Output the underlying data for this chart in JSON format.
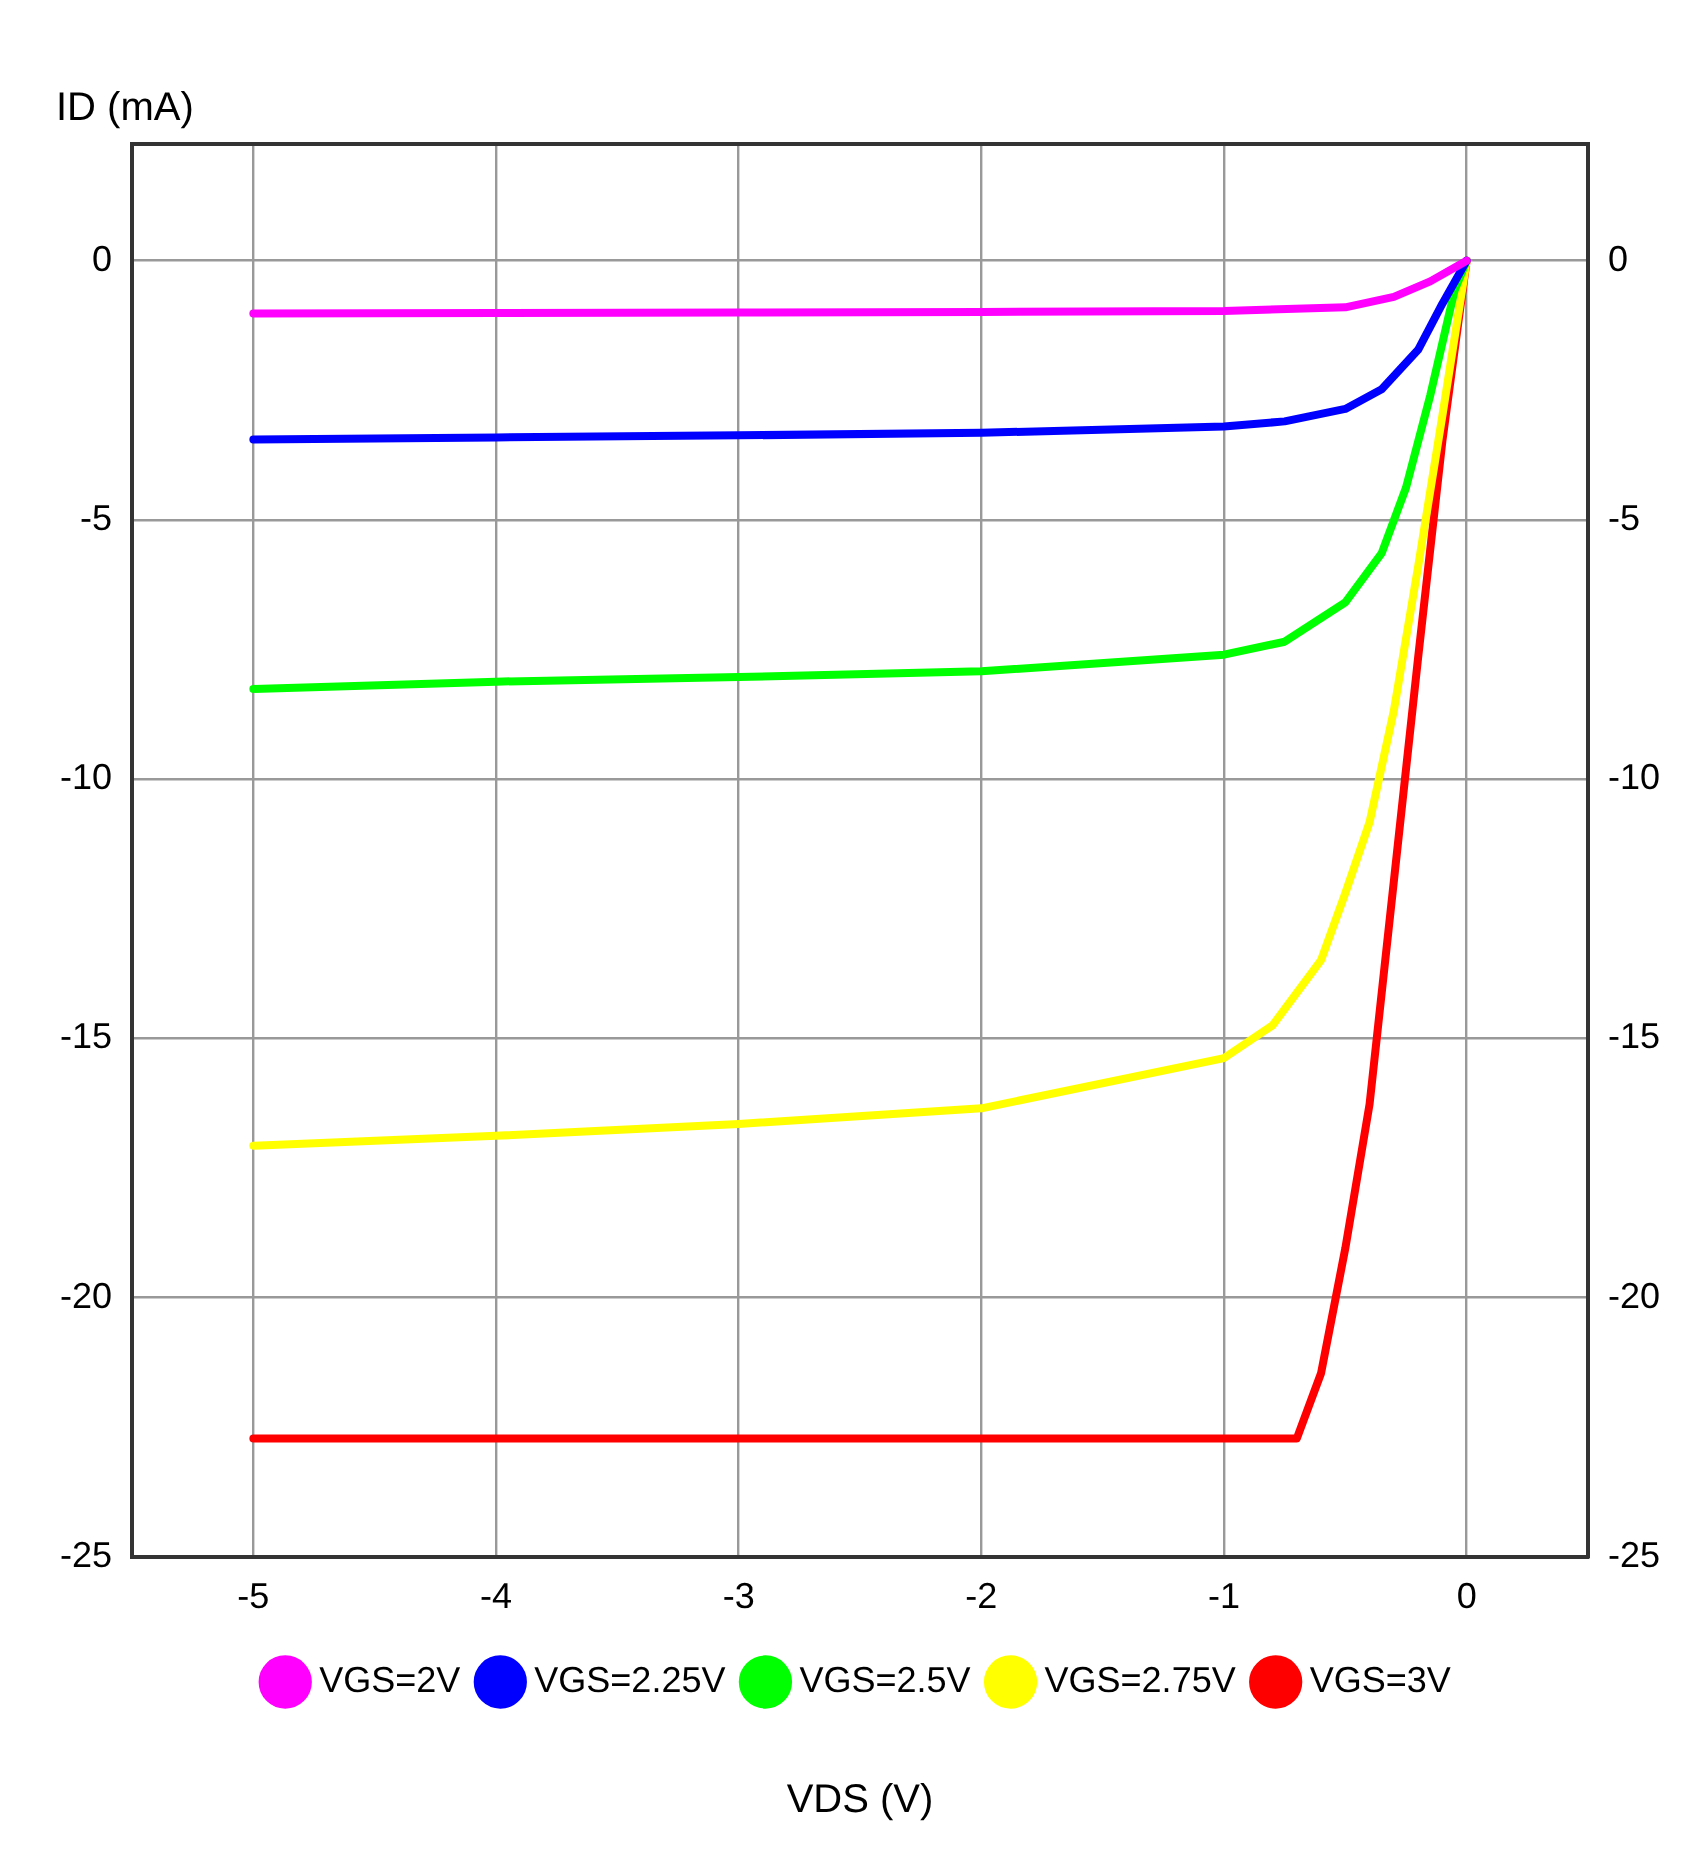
{
  "chart_data": {
    "type": "line",
    "xlabel": "VDS (V)",
    "ylabel": "ID (mA)",
    "xlim": [
      -5.5,
      0.5
    ],
    "xticks": [
      -5,
      -4,
      -3,
      -2,
      -1,
      0
    ],
    "ylim": [
      -25,
      2.25
    ],
    "yticks": [
      -25,
      -20,
      -15,
      -10,
      -5,
      0
    ],
    "y2lim": [
      -25,
      2.25
    ],
    "y2ticks": [
      -25,
      -20,
      -15,
      -10,
      -5,
      0
    ],
    "grid": true,
    "legend": "bottom",
    "marker": "none",
    "line_style": "solid",
    "series": [
      {
        "name": "VGS=2V",
        "color": "#ff00ff",
        "x": [
          -5,
          -4,
          -3,
          -2,
          -1,
          -0.5,
          -0.3,
          -0.15,
          0
        ],
        "values": [
          -1.02,
          -1.01,
          -1,
          -0.99,
          -0.97,
          -0.9,
          -0.7,
          -0.4,
          0
        ]
      },
      {
        "name": "VGS=2.25V",
        "color": "#0000ff",
        "x": [
          -5,
          -4,
          -3,
          -2,
          -1,
          -0.75,
          -0.5,
          -0.35,
          -0.2,
          -0.1,
          0
        ],
        "values": [
          -3.45,
          -3.41,
          -3.37,
          -3.32,
          -3.2,
          -3.1,
          -2.86,
          -2.48,
          -1.72,
          -0.83,
          0
        ]
      },
      {
        "name": "VGS=2.5V",
        "color": "#00ff00",
        "x": [
          -5,
          -4,
          -3,
          -2,
          -1,
          -0.75,
          -0.5,
          -0.35,
          -0.25,
          -0.15,
          -0.05,
          0
        ],
        "values": [
          -8.26,
          -8.12,
          -8.03,
          -7.92,
          -7.6,
          -7.35,
          -6.59,
          -5.64,
          -4.38,
          -2.6,
          -0.58,
          0
        ]
      },
      {
        "name": "VGS=2.75V",
        "color": "#ffff00",
        "x": [
          -5,
          -4,
          -3,
          -2,
          -1,
          -0.8,
          -0.6,
          -0.5,
          -0.4,
          -0.3,
          -0.2,
          -0.1,
          0
        ],
        "values": [
          -17.07,
          -16.88,
          -16.65,
          -16.35,
          -15.38,
          -14.75,
          -13.49,
          -12.2,
          -10.83,
          -8.68,
          -5.9,
          -2.99,
          0
        ]
      },
      {
        "name": "VGS=3V",
        "color": "#ff0000",
        "x": [
          -5,
          -4,
          -3,
          -2,
          -1,
          -0.7,
          -0.6,
          -0.5,
          -0.4,
          -0.3,
          -0.2,
          -0.1,
          0
        ],
        "values": [
          -22.72,
          -22.72,
          -22.72,
          -22.72,
          -22.72,
          -22.72,
          -21.46,
          -19.05,
          -16.27,
          -11.97,
          -7.66,
          -3.48,
          0
        ]
      }
    ]
  }
}
